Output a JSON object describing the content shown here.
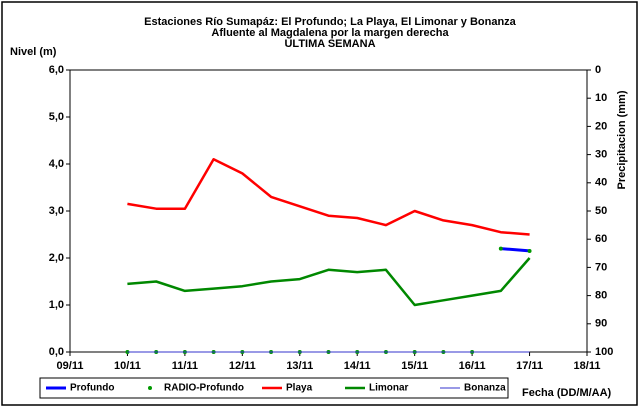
{
  "chart_data": {
    "type": "line",
    "title": [
      "Estaciones Río Sumapáz: El Profundo; La Playa, El Limonar y Bonanza",
      "Afluente al Magdalena por la margen derecha",
      "ULTIMA SEMANA"
    ],
    "y_label": "Nivel (m)",
    "y2_label": "Precipitacion (mm)",
    "x_label": "Fecha (DD/M/AA)",
    "x": [
      10,
      10.5,
      11,
      11.5,
      12,
      12.5,
      13,
      13.5,
      14,
      14.5,
      15,
      15.5,
      16,
      16.5,
      17
    ],
    "xlim": [
      9,
      18
    ],
    "xticks": [
      {
        "value": 9,
        "label": "09/11"
      },
      {
        "value": 10,
        "label": "10/11"
      },
      {
        "value": 11,
        "label": "11/11"
      },
      {
        "value": 12,
        "label": "12/11"
      },
      {
        "value": 13,
        "label": "13/11"
      },
      {
        "value": 14,
        "label": "14/11"
      },
      {
        "value": 15,
        "label": "15/11"
      },
      {
        "value": 16,
        "label": "16/11"
      },
      {
        "value": 17,
        "label": "17/11"
      },
      {
        "value": 18,
        "label": "18/11"
      }
    ],
    "ylim": [
      0,
      6
    ],
    "yticks": [
      {
        "value": 0,
        "label": "0,0"
      },
      {
        "value": 1,
        "label": "1,0"
      },
      {
        "value": 2,
        "label": "2,0"
      },
      {
        "value": 3,
        "label": "3,0"
      },
      {
        "value": 4,
        "label": "4,0"
      },
      {
        "value": 5,
        "label": "5,0"
      },
      {
        "value": 6,
        "label": "6,0"
      }
    ],
    "y2lim": [
      100,
      0
    ],
    "y2ticks": [
      0,
      10,
      20,
      30,
      40,
      50,
      60,
      70,
      80,
      90,
      100
    ],
    "series": [
      {
        "name": "Profundo",
        "color": "#0000ff",
        "width": 3,
        "values": [
          null,
          null,
          null,
          null,
          null,
          null,
          null,
          null,
          null,
          null,
          null,
          null,
          null,
          2.2,
          2.15
        ]
      },
      {
        "name": "RADIO-Profundo",
        "color": "#009900",
        "marker": "dot",
        "values": [
          0,
          0,
          0,
          0,
          0,
          0,
          0,
          0,
          0,
          0,
          0,
          0,
          0,
          2.2,
          2.15
        ]
      },
      {
        "name": "Playa",
        "color": "#ff0000",
        "width": 2.5,
        "values": [
          3.15,
          3.05,
          3.05,
          4.1,
          3.8,
          3.3,
          3.1,
          2.9,
          2.85,
          2.7,
          3.0,
          2.8,
          2.7,
          2.55,
          2.5
        ]
      },
      {
        "name": "Limonar",
        "color": "#008800",
        "width": 2.5,
        "values": [
          1.45,
          1.5,
          1.3,
          1.35,
          1.4,
          1.5,
          1.55,
          1.75,
          1.7,
          1.75,
          1.0,
          1.1,
          1.2,
          1.3,
          2.0
        ]
      },
      {
        "name": "Bonanza",
        "color": "#3333cc",
        "width": 1,
        "values": [
          0,
          0,
          0,
          0,
          0,
          0,
          0,
          0,
          0,
          0,
          0,
          0,
          0,
          0,
          0
        ]
      }
    ]
  }
}
